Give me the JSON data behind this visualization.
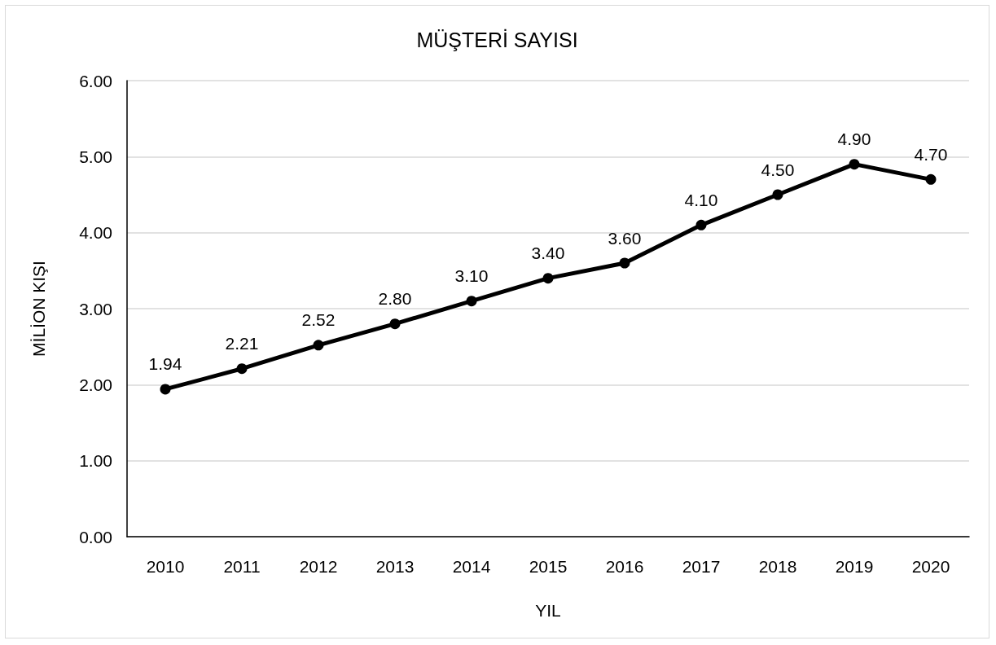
{
  "chart_data": {
    "type": "line",
    "title": "MÜŞTERİ SAYISI",
    "xlabel": "YIL",
    "ylabel": "MİLİON KIŞI",
    "categories": [
      "2010",
      "2011",
      "2012",
      "2013",
      "2014",
      "2015",
      "2016",
      "2017",
      "2018",
      "2019",
      "2020"
    ],
    "series": [
      {
        "color": "#000000",
        "values": [
          1.94,
          2.21,
          2.52,
          2.8,
          3.1,
          3.4,
          3.6,
          4.1,
          4.5,
          4.9,
          4.7
        ],
        "value_labels": [
          "1.94",
          "2.21",
          "2.52",
          "2.80",
          "3.10",
          "3.40",
          "3.60",
          "4.10",
          "4.50",
          "4.90",
          "4.70"
        ]
      }
    ],
    "ylim": [
      0,
      6
    ],
    "yticks": [
      {
        "value": 0,
        "label": "0.00"
      },
      {
        "value": 1,
        "label": "1.00"
      },
      {
        "value": 2,
        "label": "2.00"
      },
      {
        "value": 3,
        "label": "3.00"
      },
      {
        "value": 4,
        "label": "4.00"
      },
      {
        "value": 5,
        "label": "5.00"
      },
      {
        "value": 6,
        "label": "6.00"
      }
    ],
    "grid": "y",
    "marker": "circle",
    "line_style": "solid"
  }
}
